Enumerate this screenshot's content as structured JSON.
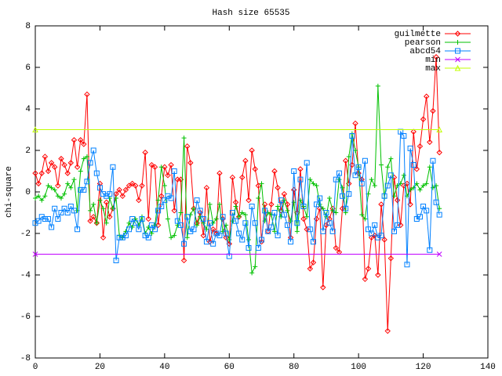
{
  "chart_data": {
    "type": "line",
    "title": "Hash size 65535",
    "y_label": "chi-square",
    "xlim": [
      0,
      140
    ],
    "xticks": [
      0,
      20,
      40,
      60,
      80,
      100,
      120,
      140
    ],
    "ylim": [
      -8,
      8
    ],
    "yticks": [
      -8,
      -6,
      -4,
      -2,
      0,
      2,
      4,
      6,
      8
    ],
    "legend": "top-right",
    "x": [
      0,
      1,
      2,
      3,
      4,
      5,
      6,
      7,
      8,
      9,
      10,
      11,
      12,
      13,
      14,
      15,
      16,
      17,
      18,
      19,
      20,
      21,
      22,
      23,
      24,
      25,
      26,
      27,
      28,
      29,
      30,
      31,
      32,
      33,
      34,
      35,
      36,
      37,
      38,
      39,
      40,
      41,
      42,
      43,
      44,
      45,
      46,
      47,
      48,
      49,
      50,
      51,
      52,
      53,
      54,
      55,
      56,
      57,
      58,
      59,
      60,
      61,
      62,
      63,
      64,
      65,
      66,
      67,
      68,
      69,
      70,
      71,
      72,
      73,
      74,
      75,
      76,
      77,
      78,
      79,
      80,
      81,
      82,
      83,
      84,
      85,
      86,
      87,
      88,
      89,
      90,
      91,
      92,
      93,
      94,
      95,
      96,
      97,
      98,
      99,
      100,
      101,
      102,
      103,
      104,
      105,
      106,
      107,
      108,
      109,
      110,
      111,
      112,
      113,
      114,
      115,
      116,
      117,
      118,
      119,
      120,
      121,
      122,
      123,
      124,
      125
    ],
    "series": [
      {
        "name": "guilmette",
        "color": "#ff0000",
        "marker": "diamond",
        "values": [
          0.9,
          0.4,
          0.9,
          1.7,
          1.0,
          1.4,
          1.2,
          0.3,
          1.6,
          1.3,
          0.9,
          1.4,
          2.5,
          1.2,
          2.5,
          2.3,
          4.7,
          -1.4,
          -1.2,
          -1.5,
          0.4,
          -2.2,
          -0.5,
          -1.2,
          -0.8,
          -0.1,
          0.1,
          -0.2,
          0.1,
          0.3,
          0.4,
          0.3,
          -0.4,
          0.3,
          1.9,
          -1.3,
          1.3,
          1.2,
          -1.6,
          -0.2,
          1.2,
          0.8,
          1.3,
          -0.9,
          0.6,
          0.6,
          -3.3,
          2.2,
          1.4,
          -0.8,
          -1.5,
          -1.0,
          -2.1,
          0.2,
          -2.4,
          -1.8,
          -2.0,
          0.9,
          -1.3,
          -2.2,
          -2.5,
          0.7,
          -0.5,
          -1.2,
          0.7,
          1.5,
          -0.4,
          2.0,
          1.1,
          0.3,
          -2.4,
          -0.6,
          -1.9,
          -0.6,
          1.0,
          0.2,
          -0.9,
          -0.1,
          -0.6,
          -2.2,
          0.1,
          -1.0,
          1.1,
          -1.3,
          -1.8,
          -3.7,
          -3.4,
          -1.3,
          -0.8,
          -4.6,
          -1.6,
          -1.3,
          -0.8,
          -2.7,
          -2.9,
          -0.8,
          1.5,
          0.4,
          1.3,
          3.3,
          0.9,
          0.6,
          -4.2,
          -3.7,
          -2.2,
          -2.1,
          -4.0,
          -0.6,
          -2.3,
          -6.7,
          -3.2,
          0.7,
          -0.4,
          -1.6,
          0.3,
          0.4,
          -0.6,
          2.9,
          1.1,
          2.2,
          3.5,
          4.6,
          2.4,
          3.9,
          6.5,
          1.9
        ]
      },
      {
        "name": "pearson",
        "color": "#00c000",
        "marker": "plus",
        "values": [
          -0.3,
          -0.2,
          -0.4,
          -0.2,
          0.3,
          0.2,
          0.1,
          -0.2,
          -0.3,
          -0.1,
          0.4,
          0.2,
          0.6,
          -0.9,
          1.0,
          1.6,
          1.7,
          -0.9,
          -0.6,
          -1.5,
          -0.4,
          -0.8,
          -1.5,
          -0.3,
          -0.8,
          -0.3,
          -2.1,
          -2.2,
          -1.9,
          -1.5,
          -1.7,
          -1.3,
          -1.6,
          -1.2,
          -2.0,
          -1.7,
          -2.0,
          -1.6,
          -0.4,
          1.2,
          0.3,
          -1.3,
          -2.2,
          -2.1,
          -1.6,
          -1.0,
          2.6,
          -2.2,
          -1.1,
          -0.8,
          -1.6,
          -1.2,
          -1.5,
          -1.8,
          -0.6,
          -1.5,
          -1.3,
          -0.6,
          -1.9,
          -1.6,
          -2.3,
          -1.4,
          -0.7,
          -1.2,
          -1.0,
          -1.1,
          -2.3,
          -3.9,
          -3.6,
          -0.3,
          0.4,
          -1.4,
          -1.0,
          -1.1,
          -1.9,
          -0.7,
          -1.2,
          -0.4,
          -0.9,
          -1.4,
          -0.5,
          -1.9,
          -0.4,
          -0.7,
          -1.2,
          0.6,
          0.4,
          0.3,
          -0.6,
          -0.8,
          -1.2,
          -0.3,
          -0.9,
          -1.0,
          0.6,
          0.2,
          -1.0,
          1.7,
          2.8,
          2.0,
          1.2,
          -1.1,
          -1.3,
          -0.1,
          0.6,
          0.3,
          5.1,
          1.3,
          -0.3,
          1.2,
          1.6,
          -0.2,
          0.3,
          0.4,
          0.8,
          -0.2,
          0.1,
          0.2,
          0.4,
          0.1,
          0.3,
          0.4,
          1.2,
          0.2,
          0.3,
          -0.8
        ]
      },
      {
        "name": "abcd54",
        "color": "#0080ff",
        "marker": "square",
        "values": [
          -1.5,
          -1.4,
          -1.2,
          -1.3,
          -1.3,
          -1.7,
          -0.8,
          -1.3,
          -1.0,
          -0.8,
          -1.0,
          -0.7,
          -0.9,
          -1.8,
          0.1,
          0.1,
          0.5,
          1.4,
          2.0,
          0.9,
          0.2,
          -0.1,
          -0.2,
          -0.1,
          1.2,
          -3.3,
          -2.2,
          -2.2,
          -2.1,
          -1.8,
          -1.3,
          -1.5,
          -1.8,
          -1.3,
          -2.1,
          -2.2,
          -1.6,
          -1.8,
          -0.9,
          -0.7,
          -0.4,
          -0.2,
          -0.3,
          1.0,
          -1.4,
          -1.6,
          -2.5,
          -1.2,
          -1.9,
          -1.8,
          -0.4,
          -0.9,
          -1.3,
          -2.4,
          -1.5,
          -2.5,
          -2.0,
          -2.1,
          -1.2,
          -2.0,
          -3.1,
          -1.0,
          -1.4,
          -2.0,
          -2.3,
          -1.5,
          -2.7,
          -0.7,
          -1.5,
          -2.7,
          -2.3,
          -0.9,
          -1.9,
          -1.7,
          -1.0,
          -2.1,
          -0.4,
          -1.1,
          -1.6,
          -2.4,
          1.0,
          -1.5,
          0.6,
          -0.7,
          1.4,
          -1.8,
          -2.4,
          -0.6,
          -0.3,
          -1.9,
          -1.0,
          -1.5,
          -1.9,
          0.6,
          0.9,
          -0.2,
          -0.8,
          -0.1,
          2.7,
          0.8,
          1.2,
          0.4,
          1.5,
          -1.8,
          -2.0,
          -1.6,
          -2.2,
          -2.1,
          -0.2,
          0.3,
          0.8,
          -1.9,
          -1.6,
          2.9,
          2.7,
          -3.5,
          2.1,
          1.3,
          -1.3,
          -1.2,
          -0.7,
          -0.9,
          -2.8,
          1.5,
          -0.5,
          -1.1
        ]
      },
      {
        "name": "min",
        "color": "#c000ff",
        "marker": "cross",
        "x": [
          0,
          125
        ],
        "values": [
          -3,
          -3
        ]
      },
      {
        "name": "max",
        "color": "#c0ff00",
        "marker": "triangle",
        "x": [
          0,
          125
        ],
        "values": [
          3,
          3
        ]
      }
    ]
  }
}
